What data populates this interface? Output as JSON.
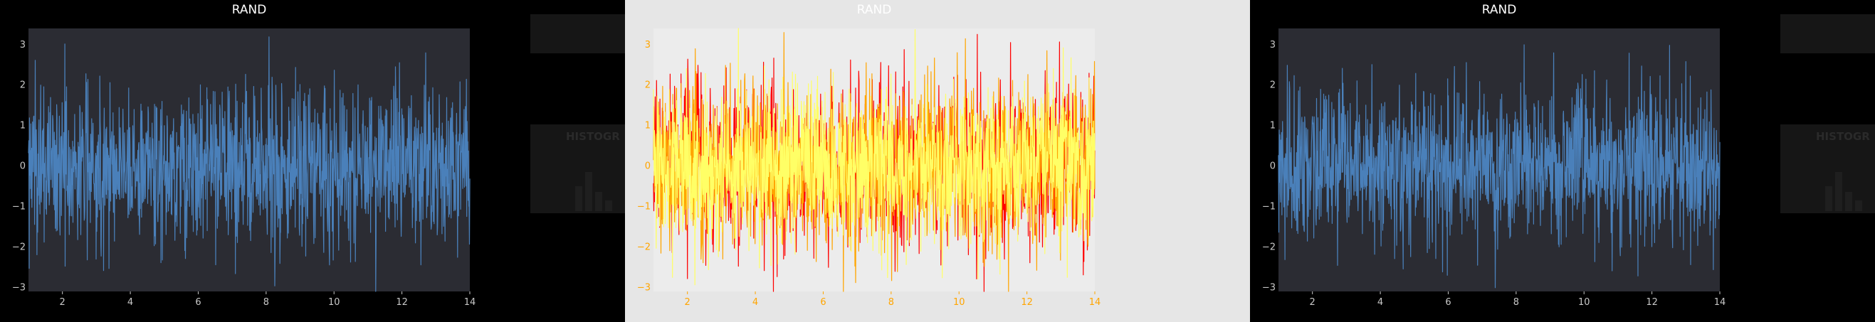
{
  "dashboard": {
    "background": "#000000",
    "panels": [
      {
        "theme": "dark",
        "title": "RAND",
        "background": "#000000",
        "plot_background": "#2b2c33",
        "line_color": "#4a80ba",
        "text_color": "#ffffff",
        "tick_color": "#c8c8c8",
        "ghost_heading": "HISTOGR",
        "ghost_color": "#161616"
      },
      {
        "theme": "light",
        "title": "RAND",
        "background": "#e6e6e6",
        "plot_background": "#ececec",
        "line_colors": [
          "#ff0000",
          "#ffa500",
          "#ffff66"
        ],
        "text_color": "#ffffff",
        "tick_color": "#ffa500",
        "ghost_heading": "",
        "ghost_color": "#dcdcdc"
      },
      {
        "theme": "dark",
        "title": "RAND",
        "background": "#000000",
        "plot_background": "#2b2c33",
        "line_color": "#4a80ba",
        "text_color": "#ffffff",
        "tick_color": "#c8c8c8",
        "ghost_heading": "HISTOGR",
        "ghost_color": "#161616"
      }
    ]
  },
  "chart_data": [
    {
      "type": "line",
      "title": "RAND",
      "xlabel": "",
      "ylabel": "",
      "xlim": [
        1,
        14
      ],
      "ylim": [
        -3.1,
        3.4
      ],
      "xticks": [
        2,
        4,
        6,
        8,
        10,
        12,
        14
      ],
      "yticks": [
        -3,
        -2,
        -1,
        0,
        1,
        2,
        3
      ],
      "grid": false,
      "legend": "none",
      "series": [
        {
          "color": "#4a80ba",
          "n_points": 1300,
          "distribution": "normal",
          "mean": 0,
          "std": 1,
          "x_range": [
            1,
            14
          ]
        }
      ]
    },
    {
      "type": "line",
      "title": "RAND",
      "xlabel": "",
      "ylabel": "",
      "xlim": [
        1,
        14
      ],
      "ylim": [
        -3.1,
        3.4
      ],
      "xticks": [
        2,
        4,
        6,
        8,
        10,
        12,
        14
      ],
      "yticks": [
        -3,
        -2,
        -1,
        0,
        1,
        2,
        3
      ],
      "grid": false,
      "legend": "none",
      "series": [
        {
          "color": "#ff0000",
          "n_points": 1300,
          "distribution": "normal",
          "mean": 0,
          "std": 1,
          "x_range": [
            1,
            14
          ]
        },
        {
          "color": "#ffa500",
          "n_points": 1300,
          "distribution": "normal",
          "mean": 0,
          "std": 1,
          "x_range": [
            1,
            14
          ]
        },
        {
          "color": "#ffff66",
          "n_points": 1300,
          "distribution": "normal",
          "mean": 0,
          "std": 1,
          "x_range": [
            1,
            14
          ]
        }
      ]
    },
    {
      "type": "line",
      "title": "RAND",
      "xlabel": "",
      "ylabel": "",
      "xlim": [
        1,
        14
      ],
      "ylim": [
        -3.1,
        3.4
      ],
      "xticks": [
        2,
        4,
        6,
        8,
        10,
        12,
        14
      ],
      "yticks": [
        -3,
        -2,
        -1,
        0,
        1,
        2,
        3
      ],
      "grid": false,
      "legend": "none",
      "series": [
        {
          "color": "#4a80ba",
          "n_points": 1300,
          "distribution": "normal",
          "mean": 0,
          "std": 1,
          "x_range": [
            1,
            14
          ]
        }
      ]
    }
  ]
}
